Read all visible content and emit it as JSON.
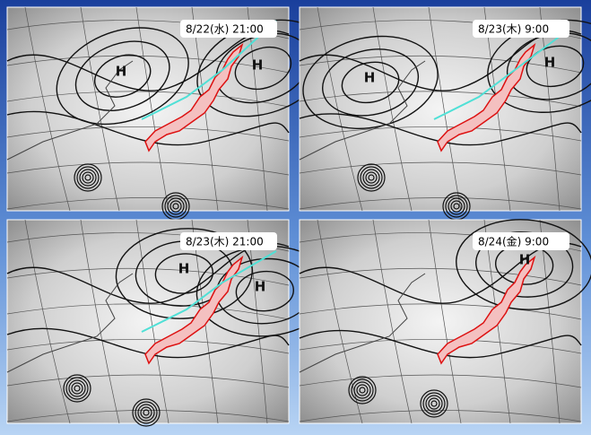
{
  "panels": [
    {
      "time_label": "8/22(水) 21:00",
      "marks": [
        "H",
        "H"
      ]
    },
    {
      "time_label": "8/23(木)  9:00",
      "marks": [
        "H",
        "H"
      ]
    },
    {
      "time_label": "8/23(木) 21:00",
      "marks": [
        "H",
        "H"
      ]
    },
    {
      "time_label": "8/24(金)  9:00",
      "marks": [
        "H"
      ]
    }
  ]
}
